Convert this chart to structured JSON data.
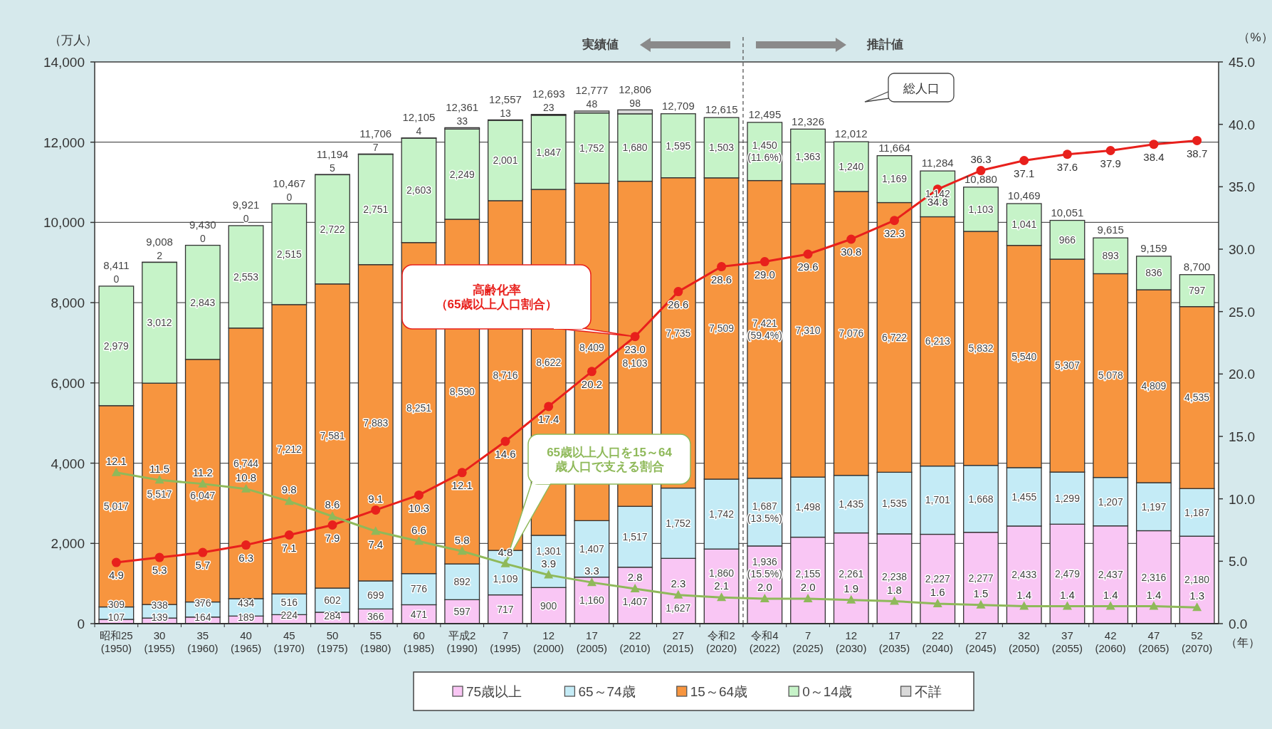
{
  "chart_data": {
    "type": "bar",
    "stacked": true,
    "ylabel": "（万人）",
    "y2label": "（%）",
    "xlabel": "（年）",
    "categories": [
      "昭和25\n(1950)",
      "30\n(1955)",
      "35\n(1960)",
      "40\n(1965)",
      "45\n(1970)",
      "50\n(1975)",
      "55\n(1980)",
      "60\n(1985)",
      "平成2\n(1990)",
      "7\n(1995)",
      "12\n(2000)",
      "17\n(2005)",
      "22\n(2010)",
      "27\n(2015)",
      "令和2\n(2020)",
      "令和4\n(2022)",
      "7\n(2025)",
      "12\n(2030)",
      "17\n(2035)",
      "22\n(2040)",
      "27\n(2045)",
      "32\n(2050)",
      "37\n(2055)",
      "42\n(2060)",
      "47\n(2065)",
      "52\n(2070)"
    ],
    "series": [
      {
        "name": "75歳以上",
        "color": "#f9c6f4",
        "values": [
          107,
          139,
          164,
          189,
          224,
          284,
          366,
          471,
          597,
          717,
          900,
          1160,
          1407,
          1627,
          1860,
          1936,
          2155,
          2261,
          2238,
          2227,
          2277,
          2433,
          2479,
          2437,
          2316,
          2180
        ],
        "value_labels": [
          "107",
          "139",
          "164",
          "189",
          "224",
          "284",
          "366",
          "471",
          "597",
          "717",
          "900",
          "1,160",
          "1,407",
          "1,627",
          "1,860",
          "1,936\n(15.5%)",
          "2,155",
          "2,261",
          "2,238",
          "2,227",
          "2,277",
          "2,433",
          "2,479",
          "2,437",
          "2,316",
          "2,180"
        ]
      },
      {
        "name": "65～74歳",
        "color": "#c4ebf6",
        "values": [
          309,
          338,
          376,
          434,
          516,
          602,
          699,
          776,
          892,
          1109,
          1301,
          1407,
          1517,
          1752,
          1742,
          1687,
          1498,
          1435,
          1535,
          1701,
          1668,
          1455,
          1299,
          1207,
          1197,
          1187
        ],
        "value_labels": [
          "309",
          "338",
          "376",
          "434",
          "516",
          "602",
          "699",
          "776",
          "892",
          "1,109",
          "1,301",
          "1,407",
          "1,517",
          "1,752",
          "1,742",
          "1,687\n(13.5%)",
          "1,498",
          "1,435",
          "1,535",
          "1,701",
          "1,668",
          "1,455",
          "1,299",
          "1,207",
          "1,197",
          "1,187"
        ]
      },
      {
        "name": "15～64歳",
        "color": "#f7953f",
        "values": [
          5017,
          5517,
          6047,
          6744,
          7212,
          7581,
          7883,
          8251,
          8590,
          8716,
          8622,
          8409,
          8103,
          7735,
          7509,
          7421,
          7310,
          7076,
          6722,
          6213,
          5832,
          5540,
          5307,
          5078,
          4809,
          4535
        ],
        "value_labels": [
          "5,017",
          "5,517",
          "6,047",
          "6,744",
          "7,212",
          "7,581",
          "7,883",
          "8,251",
          "8,590",
          "8,716",
          "8,622",
          "8,409",
          "8,103",
          "7,735",
          "7,509",
          "7,421\n(59.4%)",
          "7,310",
          "7,076",
          "6,722",
          "6,213",
          "5,832",
          "5,540",
          "5,307",
          "5,078",
          "4,809",
          "4,535"
        ]
      },
      {
        "name": "0～14歳",
        "color": "#c6f3c8",
        "values": [
          2979,
          3012,
          2843,
          2553,
          2515,
          2722,
          2751,
          2603,
          2249,
          2001,
          1847,
          1752,
          1680,
          1595,
          1503,
          1450,
          1363,
          1240,
          1169,
          1142,
          1103,
          1041,
          966,
          893,
          836,
          797
        ],
        "value_labels": [
          "2,979",
          "3,012",
          "2,843",
          "2,553",
          "2,515",
          "2,722",
          "2,751",
          "2,603",
          "2,249",
          "2,001",
          "1,847",
          "1,752",
          "1,680",
          "1,595",
          "1,503",
          "1,450\n(11.6%)",
          "1,363",
          "1,240",
          "1,169",
          "1,142",
          "1,103",
          "1,041",
          "966",
          "893",
          "836",
          "797"
        ]
      },
      {
        "name": "不詳",
        "color": "#d9d9d9",
        "values": [
          0,
          2,
          0,
          0,
          0,
          5,
          7,
          4,
          33,
          13,
          23,
          48,
          98,
          null,
          null,
          null,
          null,
          null,
          null,
          null,
          null,
          null,
          null,
          null,
          null,
          null
        ],
        "value_labels": [
          "0",
          "2",
          "0",
          "0",
          "0",
          "5",
          "7",
          "4",
          "33",
          "13",
          "23",
          "48",
          "98",
          null,
          null,
          null,
          null,
          null,
          null,
          null,
          null,
          null,
          null,
          null,
          null,
          null
        ]
      },
      {
        "name": "高齢化率（65歳以上人口割合）",
        "type": "line",
        "axis": "y2",
        "color": "#e8201c",
        "marker": "circle",
        "values": [
          4.9,
          5.3,
          5.7,
          6.3,
          7.1,
          7.9,
          9.1,
          10.3,
          12.1,
          14.6,
          17.4,
          20.2,
          23.0,
          26.6,
          28.6,
          29.0,
          29.6,
          30.8,
          32.3,
          34.8,
          36.3,
          37.1,
          37.6,
          37.9,
          38.4,
          38.7
        ],
        "value_labels": [
          "4.9",
          "5.3",
          "5.7",
          "6.3",
          "7.1",
          "7.9",
          "9.1",
          "10.3",
          "12.1",
          "14.6",
          "17.4",
          "20.2",
          "23.0",
          "26.6",
          "28.6",
          "29.0",
          "29.6",
          "30.8",
          "32.3",
          "34.8",
          "36.3",
          "37.1",
          "37.6",
          "37.9",
          "38.4",
          "38.7"
        ]
      },
      {
        "name": "65歳以上人口を15～64歳人口で支える割合",
        "type": "line",
        "axis": "y2",
        "color": "#8fb95a",
        "marker": "triangle",
        "values": [
          12.1,
          11.5,
          11.2,
          10.8,
          9.8,
          8.6,
          7.4,
          6.6,
          5.8,
          4.8,
          3.9,
          3.3,
          2.8,
          2.3,
          2.1,
          2.0,
          2.0,
          1.9,
          1.8,
          1.6,
          1.5,
          1.4,
          1.4,
          1.4,
          1.4,
          1.3
        ],
        "value_labels": [
          "12.1",
          "11.5",
          "11.2",
          "10.8",
          "9.8",
          "8.6",
          "7.4",
          "6.6",
          "5.8",
          "4.8",
          "3.9",
          "3.3",
          "2.8",
          "2.3",
          "2.1",
          "2.0",
          "2.0",
          "1.9",
          "1.8",
          "1.6",
          "1.5",
          "1.4",
          "1.4",
          "1.4",
          "1.4",
          "1.3"
        ]
      }
    ],
    "totals": [
      "8,411",
      "9,008",
      "9,430",
      "9,921",
      "10,467",
      "11,194",
      "11,706",
      "12,105",
      "12,361",
      "12,557",
      "12,693",
      "12,777",
      "12,806",
      "12,709",
      "12,615",
      "12,495",
      "12,326",
      "12,012",
      "11,664",
      "11,284",
      "10,880",
      "10,469",
      "10,051",
      "9,615",
      "9,159",
      "8,700"
    ],
    "ylim": [
      0,
      14000
    ],
    "yticks": [
      {
        "value": 0,
        "label": "0"
      },
      {
        "value": 2000,
        "label": "2,000"
      },
      {
        "value": 4000,
        "label": "4,000"
      },
      {
        "value": 6000,
        "label": "6,000"
      },
      {
        "value": 8000,
        "label": "8,000"
      },
      {
        "value": 10000,
        "label": "10,000"
      },
      {
        "value": 12000,
        "label": "12,000"
      },
      {
        "value": 14000,
        "label": "14,000"
      }
    ],
    "y2lim": [
      0,
      45
    ],
    "y2ticks": [
      {
        "value": 0,
        "label": "0.0"
      },
      {
        "value": 5,
        "label": "5.0"
      },
      {
        "value": 10,
        "label": "10.0"
      },
      {
        "value": 15,
        "label": "15.0"
      },
      {
        "value": 20,
        "label": "20.0"
      },
      {
        "value": 25,
        "label": "25.0"
      },
      {
        "value": 30,
        "label": "30.0"
      },
      {
        "value": 35,
        "label": "35.0"
      },
      {
        "value": 40,
        "label": "40.0"
      },
      {
        "value": 45,
        "label": "45.0"
      }
    ],
    "ref_lines": [
      {
        "axis": "x",
        "value": "令和4\n(2022)",
        "line_style": "dashed",
        "color": "#555555"
      }
    ],
    "annotations": [
      "実績値",
      "推計値",
      "総人口"
    ],
    "grid": "y",
    "legend": "bottom"
  }
}
